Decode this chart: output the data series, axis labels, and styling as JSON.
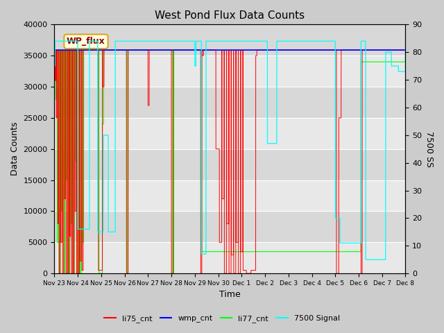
{
  "title": "West Pond Flux Data Counts",
  "xlabel": "Time",
  "ylabel_left": "Data Counts",
  "ylabel_right": "7500 SS",
  "legend_label": "WP_flux",
  "ylim_left": [
    0,
    40000
  ],
  "ylim_right": [
    0,
    90
  ],
  "fig_bg": "#cccccc",
  "plot_bg": "#e0e0e0",
  "tick_labels": [
    "Nov 23",
    "Nov 24",
    "Nov 25",
    "Nov 26",
    "Nov 27",
    "Nov 28",
    "Nov 29",
    "Nov 30",
    "Dec 1",
    "Dec 2",
    "Dec 3",
    "Dec 4",
    "Dec 5",
    "Dec 6",
    "Dec 7",
    "Dec 8"
  ],
  "yticks_left": [
    0,
    5000,
    10000,
    15000,
    20000,
    25000,
    30000,
    35000,
    40000
  ],
  "yticks_right": [
    0,
    10,
    20,
    30,
    40,
    50,
    60,
    70,
    80,
    90
  ]
}
